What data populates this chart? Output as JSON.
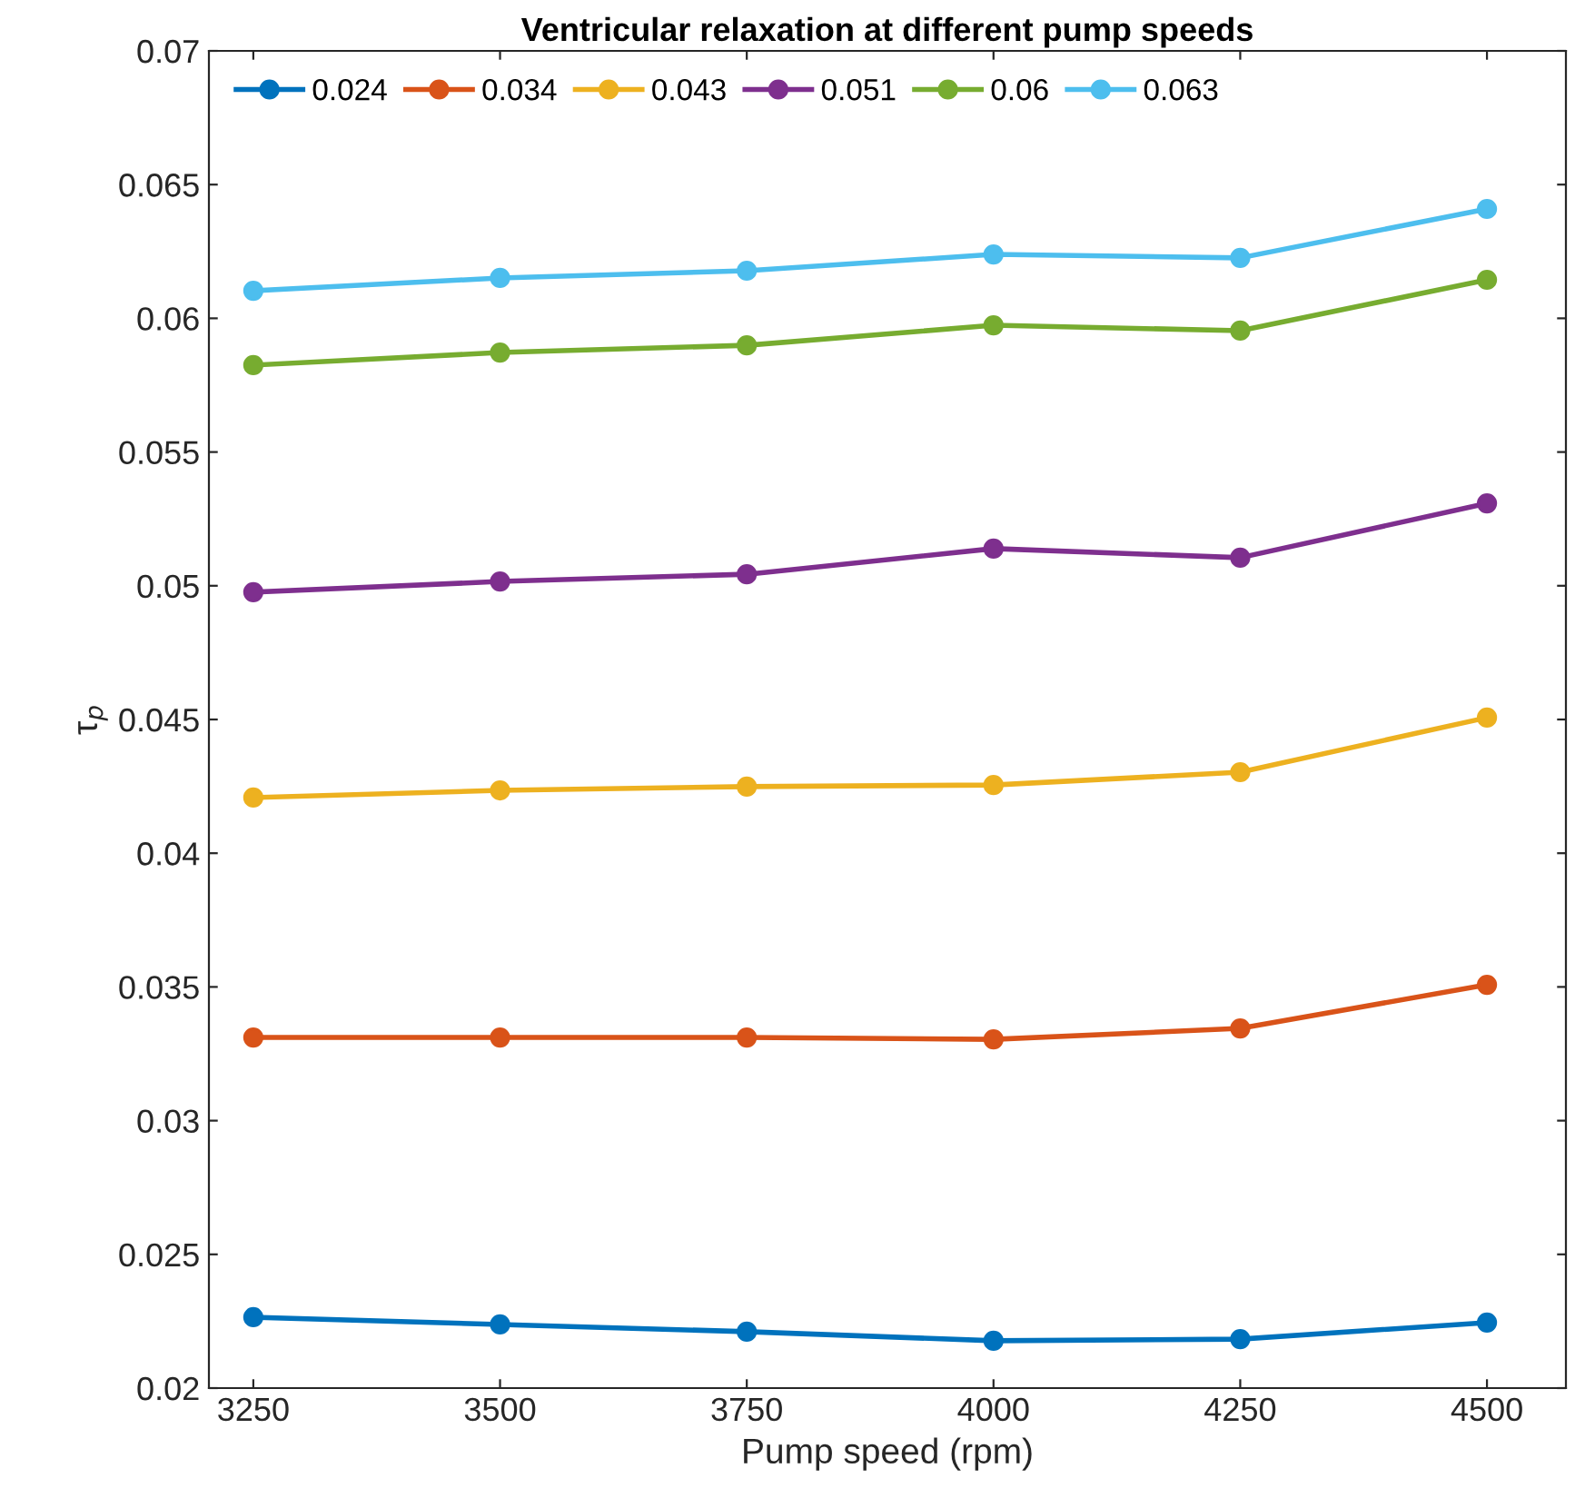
{
  "chart_data": {
    "type": "line",
    "title": "Ventricular relaxation at different pump speeds",
    "xlabel": "Pump speed (rpm)",
    "ylabel": "τ$_{p}$",
    "x": [
      3250,
      3500,
      3750,
      4000,
      4250,
      4500
    ],
    "series": [
      {
        "name": "0.024",
        "color": "#0072bd",
        "values": [
          0.02265,
          0.02238,
          0.02211,
          0.02177,
          0.02183,
          0.02245
        ]
      },
      {
        "name": "0.034",
        "color": "#d95319",
        "values": [
          0.03311,
          0.03311,
          0.03311,
          0.03304,
          0.03345,
          0.03508
        ]
      },
      {
        "name": "0.043",
        "color": "#edb120",
        "values": [
          0.04208,
          0.04235,
          0.04249,
          0.04255,
          0.04303,
          0.04507
        ]
      },
      {
        "name": "0.051",
        "color": "#7e2f8e",
        "values": [
          0.04976,
          0.05016,
          0.05043,
          0.05139,
          0.05105,
          0.05308
        ]
      },
      {
        "name": "0.06",
        "color": "#77ac30",
        "values": [
          0.05825,
          0.05872,
          0.05899,
          0.05974,
          0.05954,
          0.06144
        ]
      },
      {
        "name": "0.063",
        "color": "#4dbeee",
        "values": [
          0.06103,
          0.06151,
          0.06178,
          0.06239,
          0.06226,
          0.06409
        ]
      }
    ],
    "xlim": [
      3205,
      4580
    ],
    "xticks": [
      3250,
      3500,
      3750,
      4000,
      4250,
      4500
    ],
    "ylim": [
      0.02,
      0.07
    ],
    "yticks": [
      0.02,
      0.025,
      0.03,
      0.035,
      0.04,
      0.045,
      0.05,
      0.055,
      0.06,
      0.065,
      0.07
    ],
    "grid": false,
    "legend": "top left",
    "marker": "circle",
    "line_style": "solid"
  }
}
